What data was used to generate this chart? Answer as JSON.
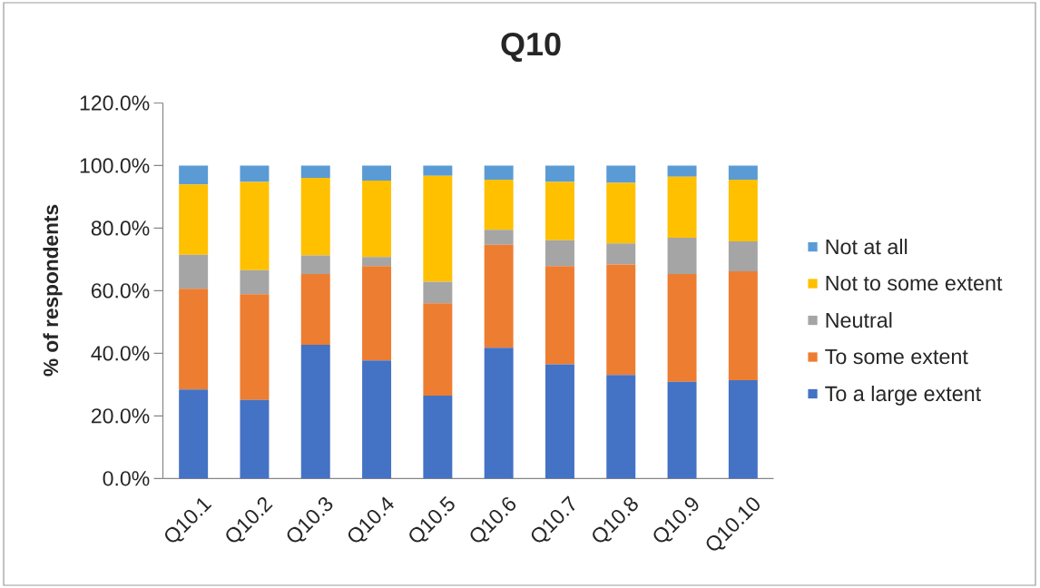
{
  "chart_data": {
    "type": "bar",
    "title": "Q10",
    "ylabel": "% of respondents",
    "stacked": true,
    "legend": "right",
    "categories": [
      "Q10.1",
      "Q10.2",
      "Q10.3",
      "Q10.4",
      "Q10.5",
      "Q10.6",
      "Q10.7",
      "Q10.8",
      "Q10.9",
      "Q10.10"
    ],
    "ylim": [
      0,
      120
    ],
    "yticks": [
      {
        "value": 0,
        "label": "0.0%"
      },
      {
        "value": 20,
        "label": "20.0%"
      },
      {
        "value": 40,
        "label": "40.0%"
      },
      {
        "value": 60,
        "label": "60.0%"
      },
      {
        "value": 80,
        "label": "80.0%"
      },
      {
        "value": 100,
        "label": "100.0%"
      },
      {
        "value": 120,
        "label": "120.0%"
      }
    ],
    "series": [
      {
        "name": "To a large extent",
        "color": "#4472c4",
        "values": [
          28.4,
          25.1,
          42.7,
          37.7,
          26.5,
          41.8,
          36.5,
          33.1,
          30.9,
          31.4
        ]
      },
      {
        "name": "To some extent",
        "color": "#ed7d31",
        "values": [
          32.2,
          33.8,
          22.6,
          30.2,
          29.5,
          32.9,
          31.4,
          35.3,
          34.4,
          34.8
        ]
      },
      {
        "name": "Neutral",
        "color": "#a5a5a5",
        "values": [
          10.9,
          7.7,
          6.0,
          2.9,
          6.9,
          4.8,
          8.2,
          6.7,
          11.6,
          9.6
        ]
      },
      {
        "name": "Not to some extent",
        "color": "#ffc000",
        "values": [
          22.5,
          28.2,
          24.8,
          24.4,
          33.8,
          16.0,
          18.7,
          19.4,
          19.5,
          19.7
        ]
      },
      {
        "name": "Not at all",
        "color": "#5b9bd5",
        "values": [
          6.0,
          5.2,
          3.9,
          4.8,
          3.3,
          4.5,
          5.2,
          5.5,
          3.6,
          4.5
        ]
      }
    ]
  }
}
